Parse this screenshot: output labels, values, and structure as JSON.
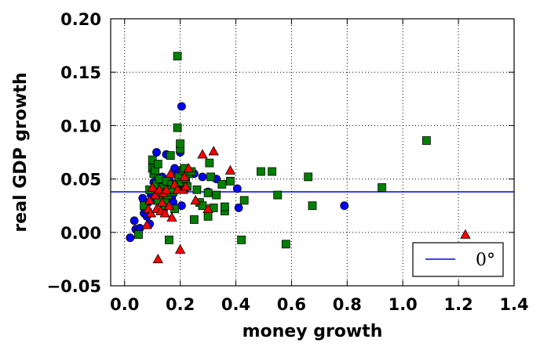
{
  "chart_data": {
    "type": "scatter",
    "xlabel": "money growth",
    "ylabel": "real GDP growth",
    "xlim": [
      -0.05,
      1.4
    ],
    "ylim": [
      -0.05,
      0.2
    ],
    "xticks": [
      0.0,
      0.2,
      0.4,
      0.6,
      0.8,
      1.0,
      1.2,
      1.4
    ],
    "yticks": [
      -0.05,
      0.0,
      0.05,
      0.1,
      0.15,
      0.2
    ],
    "xtick_labels": [
      "0.0",
      "0.2",
      "0.4",
      "0.6",
      "0.8",
      "1.0",
      "1.2",
      "1.4"
    ],
    "ytick_labels": [
      "−0.05",
      "0.00",
      "0.05",
      "0.10",
      "0.15",
      "0.20"
    ],
    "grid": true,
    "legend_position": "bottom-right",
    "reference_line": {
      "label": "0°",
      "y": 0.038,
      "color": "#0000ff"
    },
    "series": [
      {
        "marker": "circle",
        "color": "#0000ff",
        "points": [
          [
            0.02,
            -0.005
          ],
          [
            0.035,
            0.011
          ],
          [
            0.04,
            0.003
          ],
          [
            0.05,
            0.002
          ],
          [
            0.055,
            0.004
          ],
          [
            0.065,
            0.032
          ],
          [
            0.07,
            0.018
          ],
          [
            0.075,
            0.022
          ],
          [
            0.08,
            0.015
          ],
          [
            0.085,
            0.028
          ],
          [
            0.09,
            0.008
          ],
          [
            0.095,
            0.035
          ],
          [
            0.1,
            0.04
          ],
          [
            0.105,
            0.047
          ],
          [
            0.11,
            0.03
          ],
          [
            0.115,
            0.075
          ],
          [
            0.12,
            0.045
          ],
          [
            0.13,
            0.038
          ],
          [
            0.135,
            0.052
          ],
          [
            0.14,
            0.02
          ],
          [
            0.145,
            0.042
          ],
          [
            0.15,
            0.073
          ],
          [
            0.155,
            0.032
          ],
          [
            0.16,
            0.05
          ],
          [
            0.165,
            0.045
          ],
          [
            0.17,
            0.033
          ],
          [
            0.175,
            0.028
          ],
          [
            0.18,
            0.06
          ],
          [
            0.19,
            0.055
          ],
          [
            0.2,
            0.075
          ],
          [
            0.205,
            0.118
          ],
          [
            0.21,
            0.045
          ],
          [
            0.215,
            0.04
          ],
          [
            0.205,
            0.025
          ],
          [
            0.25,
            0.055
          ],
          [
            0.28,
            0.052
          ],
          [
            0.33,
            0.05
          ],
          [
            0.3,
            0.038
          ],
          [
            0.405,
            0.041
          ],
          [
            0.41,
            0.023
          ],
          [
            0.79,
            0.025
          ]
        ]
      },
      {
        "marker": "square",
        "color": "#008000",
        "points": [
          [
            0.05,
            -0.002
          ],
          [
            0.07,
            0.025
          ],
          [
            0.09,
            0.04
          ],
          [
            0.1,
            0.06
          ],
          [
            0.1,
            0.068
          ],
          [
            0.105,
            0.055
          ],
          [
            0.11,
            0.058
          ],
          [
            0.115,
            0.045
          ],
          [
            0.12,
            0.064
          ],
          [
            0.125,
            0.05
          ],
          [
            0.13,
            0.035
          ],
          [
            0.135,
            0.042
          ],
          [
            0.14,
            0.025
          ],
          [
            0.145,
            0.03
          ],
          [
            0.15,
            0.048
          ],
          [
            0.155,
            0.035
          ],
          [
            0.16,
            -0.007
          ],
          [
            0.165,
            0.072
          ],
          [
            0.17,
            0.045
          ],
          [
            0.175,
            0.038
          ],
          [
            0.18,
            0.022
          ],
          [
            0.185,
            0.045
          ],
          [
            0.19,
            0.098
          ],
          [
            0.19,
            0.165
          ],
          [
            0.195,
            0.052
          ],
          [
            0.2,
            0.078
          ],
          [
            0.2,
            0.083
          ],
          [
            0.205,
            0.047
          ],
          [
            0.21,
            0.058
          ],
          [
            0.215,
            0.06
          ],
          [
            0.22,
            0.05
          ],
          [
            0.225,
            0.043
          ],
          [
            0.23,
            0.055
          ],
          [
            0.24,
            0.057
          ],
          [
            0.25,
            0.012
          ],
          [
            0.26,
            0.04
          ],
          [
            0.27,
            0.028
          ],
          [
            0.28,
            0.025
          ],
          [
            0.3,
            0.037
          ],
          [
            0.305,
            0.065
          ],
          [
            0.31,
            0.052
          ],
          [
            0.32,
            0.023
          ],
          [
            0.33,
            0.035
          ],
          [
            0.35,
            0.045
          ],
          [
            0.36,
            0.02
          ],
          [
            0.36,
            0.024
          ],
          [
            0.38,
            0.048
          ],
          [
            0.42,
            -0.007
          ],
          [
            0.43,
            0.03
          ],
          [
            0.49,
            0.057
          ],
          [
            0.53,
            0.057
          ],
          [
            0.55,
            0.035
          ],
          [
            0.58,
            -0.011
          ],
          [
            0.66,
            0.052
          ],
          [
            0.675,
            0.025
          ],
          [
            0.925,
            0.042
          ],
          [
            1.085,
            0.086
          ],
          [
            0.3,
            0.015
          ],
          [
            0.17,
            0.04
          ],
          [
            0.12,
            0.03
          ]
        ]
      },
      {
        "marker": "triangle",
        "color": "#ff0000",
        "points": [
          [
            0.08,
            0.007
          ],
          [
            0.085,
            0.022
          ],
          [
            0.09,
            0.03
          ],
          [
            0.095,
            0.018
          ],
          [
            0.1,
            0.042
          ],
          [
            0.11,
            0.035
          ],
          [
            0.115,
            0.022
          ],
          [
            0.12,
            -0.025
          ],
          [
            0.125,
            0.04
          ],
          [
            0.13,
            0.02
          ],
          [
            0.135,
            0.028
          ],
          [
            0.14,
            0.037
          ],
          [
            0.145,
            0.018
          ],
          [
            0.15,
            0.04
          ],
          [
            0.16,
            0.025
          ],
          [
            0.165,
            0.055
          ],
          [
            0.17,
            0.014
          ],
          [
            0.18,
            0.045
          ],
          [
            0.19,
            0.04
          ],
          [
            0.2,
            -0.016
          ],
          [
            0.21,
            0.04
          ],
          [
            0.215,
            0.052
          ],
          [
            0.22,
            0.043
          ],
          [
            0.23,
            0.06
          ],
          [
            0.255,
            0.03
          ],
          [
            0.28,
            0.073
          ],
          [
            0.3,
            0.022
          ],
          [
            0.32,
            0.076
          ],
          [
            0.38,
            0.058
          ],
          [
            1.225,
            -0.002
          ]
        ]
      }
    ]
  }
}
